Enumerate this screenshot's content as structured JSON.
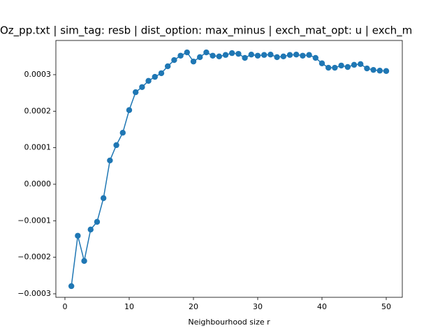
{
  "chart_data": {
    "type": "line",
    "title": "Oz_pp.txt | sim_tag: resb | dist_option: max_minus | exch_mat_opt: u | exch_m",
    "x_label": "Neighbourhood size r",
    "x": [
      1,
      2,
      3,
      4,
      5,
      6,
      7,
      8,
      9,
      10,
      11,
      12,
      13,
      14,
      15,
      16,
      17,
      18,
      19,
      20,
      21,
      22,
      23,
      24,
      25,
      26,
      27,
      28,
      29,
      30,
      31,
      32,
      33,
      34,
      35,
      36,
      37,
      38,
      39,
      40,
      41,
      42,
      43,
      44,
      45,
      46,
      47,
      48,
      49,
      50
    ],
    "series": [
      {
        "color": "#1f77b4",
        "values": [
          -0.000279,
          -0.000141,
          -0.00021,
          -0.000124,
          -0.000103,
          -3.8e-05,
          6.5e-05,
          0.000107,
          0.000141,
          0.000203,
          0.000252,
          0.000266,
          0.000283,
          0.000294,
          0.000304,
          0.000323,
          0.00034,
          0.000352,
          0.000361,
          0.000336,
          0.000348,
          0.000361,
          0.000352,
          0.00035,
          0.000354,
          0.000359,
          0.000357,
          0.000346,
          0.000355,
          0.000352,
          0.000354,
          0.000355,
          0.000348,
          0.00035,
          0.000354,
          0.000355,
          0.000352,
          0.000354,
          0.000346,
          0.000331,
          0.000319,
          0.000319,
          0.000325,
          0.000321,
          0.000327,
          0.000329,
          0.000317,
          0.000313,
          0.000311,
          0.00031
        ]
      }
    ],
    "xlim": [
      -1.41,
      52.5
    ],
    "xticks": [
      0,
      10,
      20,
      30,
      40,
      50
    ],
    "ylim": [
      -0.0003096,
      0.0003936
    ],
    "yticks": [
      {
        "value": -0.0003,
        "label": "−0.0003"
      },
      {
        "value": -0.0002,
        "label": "−0.0002"
      },
      {
        "value": -0.0001,
        "label": "−0.0001"
      },
      {
        "value": 0,
        "label": "0.0000"
      },
      {
        "value": 0.0001,
        "label": "0.0001"
      },
      {
        "value": 0.0002,
        "label": "0.0002"
      },
      {
        "value": 0.0003,
        "label": "0.0003"
      }
    ],
    "grid": false
  }
}
